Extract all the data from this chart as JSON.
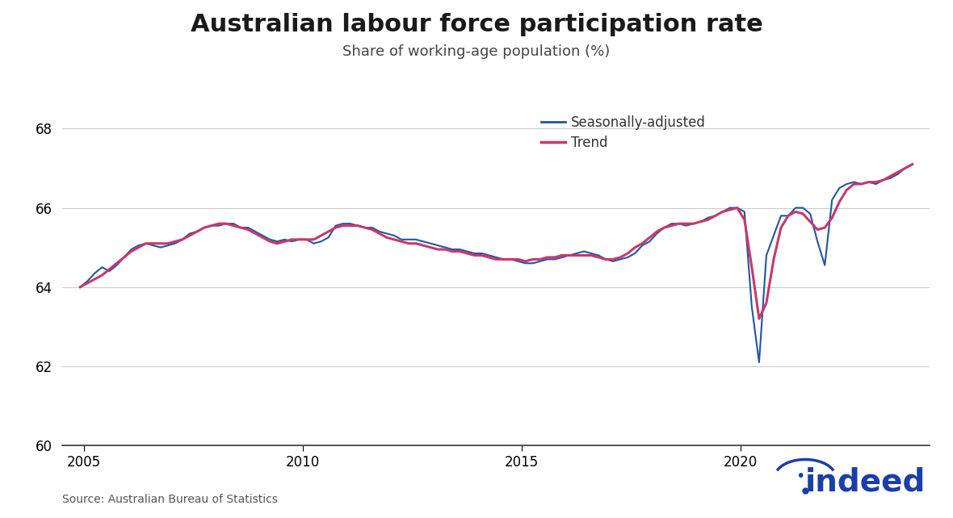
{
  "title": "Australian labour force participation rate",
  "subtitle": "Share of working-age population (%)",
  "source": "Source: Australian Bureau of Statistics",
  "ylim": [
    60,
    68.5
  ],
  "yticks": [
    60,
    62,
    64,
    66,
    68
  ],
  "xlim_start": 2004.5,
  "xlim_end": 2024.3,
  "xticks": [
    2005,
    2010,
    2015,
    2020
  ],
  "seasonally_adjusted_color": "#2355a0",
  "trend_color": "#c8386b",
  "background_color": "#ffffff",
  "legend_labels": [
    "Seasonally-adjusted",
    "Trend"
  ],
  "seasonally_adjusted": [
    [
      2004.917,
      64.0
    ],
    [
      2005.083,
      64.15
    ],
    [
      2005.25,
      64.35
    ],
    [
      2005.417,
      64.5
    ],
    [
      2005.583,
      64.4
    ],
    [
      2005.75,
      64.55
    ],
    [
      2005.917,
      64.75
    ],
    [
      2006.083,
      64.95
    ],
    [
      2006.25,
      65.05
    ],
    [
      2006.417,
      65.1
    ],
    [
      2006.583,
      65.05
    ],
    [
      2006.75,
      65.0
    ],
    [
      2006.917,
      65.05
    ],
    [
      2007.083,
      65.1
    ],
    [
      2007.25,
      65.2
    ],
    [
      2007.417,
      65.35
    ],
    [
      2007.583,
      65.4
    ],
    [
      2007.75,
      65.5
    ],
    [
      2007.917,
      65.55
    ],
    [
      2008.083,
      65.55
    ],
    [
      2008.25,
      65.6
    ],
    [
      2008.417,
      65.6
    ],
    [
      2008.583,
      65.5
    ],
    [
      2008.75,
      65.5
    ],
    [
      2008.917,
      65.4
    ],
    [
      2009.083,
      65.3
    ],
    [
      2009.25,
      65.2
    ],
    [
      2009.417,
      65.15
    ],
    [
      2009.583,
      65.2
    ],
    [
      2009.75,
      65.15
    ],
    [
      2009.917,
      65.2
    ],
    [
      2010.083,
      65.2
    ],
    [
      2010.25,
      65.1
    ],
    [
      2010.417,
      65.15
    ],
    [
      2010.583,
      65.25
    ],
    [
      2010.75,
      65.55
    ],
    [
      2010.917,
      65.6
    ],
    [
      2011.083,
      65.6
    ],
    [
      2011.25,
      65.55
    ],
    [
      2011.417,
      65.5
    ],
    [
      2011.583,
      65.5
    ],
    [
      2011.75,
      65.4
    ],
    [
      2011.917,
      65.35
    ],
    [
      2012.083,
      65.3
    ],
    [
      2012.25,
      65.2
    ],
    [
      2012.417,
      65.2
    ],
    [
      2012.583,
      65.2
    ],
    [
      2012.75,
      65.15
    ],
    [
      2012.917,
      65.1
    ],
    [
      2013.083,
      65.05
    ],
    [
      2013.25,
      65.0
    ],
    [
      2013.417,
      64.95
    ],
    [
      2013.583,
      64.95
    ],
    [
      2013.75,
      64.9
    ],
    [
      2013.917,
      64.85
    ],
    [
      2014.083,
      64.85
    ],
    [
      2014.25,
      64.8
    ],
    [
      2014.417,
      64.75
    ],
    [
      2014.583,
      64.7
    ],
    [
      2014.75,
      64.7
    ],
    [
      2014.917,
      64.65
    ],
    [
      2015.083,
      64.6
    ],
    [
      2015.25,
      64.6
    ],
    [
      2015.417,
      64.65
    ],
    [
      2015.583,
      64.7
    ],
    [
      2015.75,
      64.7
    ],
    [
      2015.917,
      64.75
    ],
    [
      2016.083,
      64.8
    ],
    [
      2016.25,
      64.85
    ],
    [
      2016.417,
      64.9
    ],
    [
      2016.583,
      64.85
    ],
    [
      2016.75,
      64.8
    ],
    [
      2016.917,
      64.7
    ],
    [
      2017.083,
      64.65
    ],
    [
      2017.25,
      64.7
    ],
    [
      2017.417,
      64.75
    ],
    [
      2017.583,
      64.85
    ],
    [
      2017.75,
      65.05
    ],
    [
      2017.917,
      65.15
    ],
    [
      2018.083,
      65.35
    ],
    [
      2018.25,
      65.5
    ],
    [
      2018.417,
      65.6
    ],
    [
      2018.583,
      65.6
    ],
    [
      2018.75,
      65.55
    ],
    [
      2018.917,
      65.6
    ],
    [
      2019.083,
      65.65
    ],
    [
      2019.25,
      65.75
    ],
    [
      2019.417,
      65.8
    ],
    [
      2019.583,
      65.9
    ],
    [
      2019.75,
      66.0
    ],
    [
      2019.917,
      66.0
    ],
    [
      2020.083,
      65.9
    ],
    [
      2020.25,
      63.5
    ],
    [
      2020.417,
      62.1
    ],
    [
      2020.583,
      64.8
    ],
    [
      2020.75,
      65.3
    ],
    [
      2020.917,
      65.8
    ],
    [
      2021.083,
      65.8
    ],
    [
      2021.25,
      66.0
    ],
    [
      2021.417,
      66.0
    ],
    [
      2021.583,
      65.85
    ],
    [
      2021.75,
      65.15
    ],
    [
      2021.917,
      64.55
    ],
    [
      2022.083,
      66.2
    ],
    [
      2022.25,
      66.5
    ],
    [
      2022.417,
      66.6
    ],
    [
      2022.583,
      66.65
    ],
    [
      2022.75,
      66.6
    ],
    [
      2022.917,
      66.65
    ],
    [
      2023.083,
      66.6
    ],
    [
      2023.25,
      66.7
    ],
    [
      2023.417,
      66.75
    ],
    [
      2023.583,
      66.85
    ],
    [
      2023.75,
      67.0
    ],
    [
      2023.917,
      67.1
    ]
  ],
  "trend": [
    [
      2004.917,
      64.0
    ],
    [
      2005.083,
      64.1
    ],
    [
      2005.25,
      64.2
    ],
    [
      2005.417,
      64.3
    ],
    [
      2005.583,
      64.45
    ],
    [
      2005.75,
      64.6
    ],
    [
      2005.917,
      64.75
    ],
    [
      2006.083,
      64.9
    ],
    [
      2006.25,
      65.0
    ],
    [
      2006.417,
      65.1
    ],
    [
      2006.583,
      65.1
    ],
    [
      2006.75,
      65.1
    ],
    [
      2006.917,
      65.1
    ],
    [
      2007.083,
      65.15
    ],
    [
      2007.25,
      65.2
    ],
    [
      2007.417,
      65.3
    ],
    [
      2007.583,
      65.4
    ],
    [
      2007.75,
      65.5
    ],
    [
      2007.917,
      65.55
    ],
    [
      2008.083,
      65.6
    ],
    [
      2008.25,
      65.6
    ],
    [
      2008.417,
      65.55
    ],
    [
      2008.583,
      65.5
    ],
    [
      2008.75,
      65.45
    ],
    [
      2008.917,
      65.35
    ],
    [
      2009.083,
      65.25
    ],
    [
      2009.25,
      65.15
    ],
    [
      2009.417,
      65.1
    ],
    [
      2009.583,
      65.15
    ],
    [
      2009.75,
      65.2
    ],
    [
      2009.917,
      65.2
    ],
    [
      2010.083,
      65.2
    ],
    [
      2010.25,
      65.2
    ],
    [
      2010.417,
      65.3
    ],
    [
      2010.583,
      65.4
    ],
    [
      2010.75,
      65.5
    ],
    [
      2010.917,
      65.55
    ],
    [
      2011.083,
      65.55
    ],
    [
      2011.25,
      65.55
    ],
    [
      2011.417,
      65.5
    ],
    [
      2011.583,
      65.45
    ],
    [
      2011.75,
      65.35
    ],
    [
      2011.917,
      65.25
    ],
    [
      2012.083,
      65.2
    ],
    [
      2012.25,
      65.15
    ],
    [
      2012.417,
      65.1
    ],
    [
      2012.583,
      65.1
    ],
    [
      2012.75,
      65.05
    ],
    [
      2012.917,
      65.0
    ],
    [
      2013.083,
      64.95
    ],
    [
      2013.25,
      64.95
    ],
    [
      2013.417,
      64.9
    ],
    [
      2013.583,
      64.9
    ],
    [
      2013.75,
      64.85
    ],
    [
      2013.917,
      64.8
    ],
    [
      2014.083,
      64.8
    ],
    [
      2014.25,
      64.75
    ],
    [
      2014.417,
      64.7
    ],
    [
      2014.583,
      64.7
    ],
    [
      2014.75,
      64.7
    ],
    [
      2014.917,
      64.7
    ],
    [
      2015.083,
      64.65
    ],
    [
      2015.25,
      64.7
    ],
    [
      2015.417,
      64.7
    ],
    [
      2015.583,
      64.75
    ],
    [
      2015.75,
      64.75
    ],
    [
      2015.917,
      64.8
    ],
    [
      2016.083,
      64.8
    ],
    [
      2016.25,
      64.8
    ],
    [
      2016.417,
      64.8
    ],
    [
      2016.583,
      64.8
    ],
    [
      2016.75,
      64.75
    ],
    [
      2016.917,
      64.7
    ],
    [
      2017.083,
      64.7
    ],
    [
      2017.25,
      64.75
    ],
    [
      2017.417,
      64.85
    ],
    [
      2017.583,
      65.0
    ],
    [
      2017.75,
      65.1
    ],
    [
      2017.917,
      65.25
    ],
    [
      2018.083,
      65.4
    ],
    [
      2018.25,
      65.5
    ],
    [
      2018.417,
      65.55
    ],
    [
      2018.583,
      65.6
    ],
    [
      2018.75,
      65.6
    ],
    [
      2018.917,
      65.6
    ],
    [
      2019.083,
      65.65
    ],
    [
      2019.25,
      65.7
    ],
    [
      2019.417,
      65.8
    ],
    [
      2019.583,
      65.9
    ],
    [
      2019.75,
      65.95
    ],
    [
      2019.917,
      66.0
    ],
    [
      2020.083,
      65.7
    ],
    [
      2020.25,
      64.5
    ],
    [
      2020.417,
      63.2
    ],
    [
      2020.583,
      63.6
    ],
    [
      2020.75,
      64.7
    ],
    [
      2020.917,
      65.5
    ],
    [
      2021.083,
      65.8
    ],
    [
      2021.25,
      65.9
    ],
    [
      2021.417,
      65.85
    ],
    [
      2021.583,
      65.65
    ],
    [
      2021.75,
      65.45
    ],
    [
      2021.917,
      65.5
    ],
    [
      2022.083,
      65.75
    ],
    [
      2022.25,
      66.15
    ],
    [
      2022.417,
      66.45
    ],
    [
      2022.583,
      66.6
    ],
    [
      2022.75,
      66.6
    ],
    [
      2022.917,
      66.65
    ],
    [
      2023.083,
      66.65
    ],
    [
      2023.25,
      66.7
    ],
    [
      2023.417,
      66.8
    ],
    [
      2023.583,
      66.9
    ],
    [
      2023.75,
      67.0
    ],
    [
      2023.917,
      67.1
    ]
  ],
  "title_fontsize": 22,
  "subtitle_fontsize": 13,
  "tick_fontsize": 12,
  "source_fontsize": 10,
  "legend_fontsize": 12
}
